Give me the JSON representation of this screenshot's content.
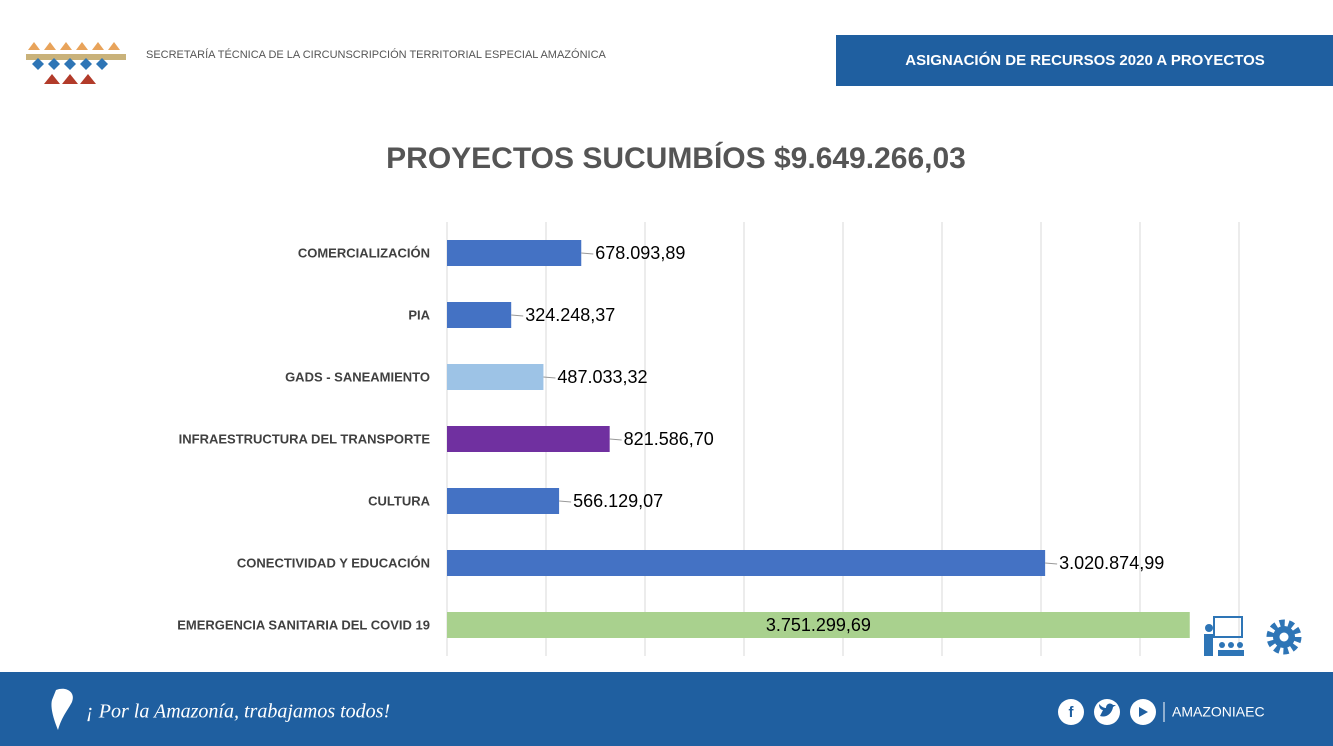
{
  "header": {
    "org": "SECRETARÍA TÉCNICA DE LA CIRCUNSCRIPCIÓN TERRITORIAL ESPECIAL AMAZÓNICA",
    "banner": "ASIGNACIÓN DE RECURSOS 2020 A PROYECTOS"
  },
  "footer": {
    "slogan": "¡ Por la Amazonía, trabajamos todos!",
    "handle": "AMAZONIAEC"
  },
  "chart_data": {
    "type": "hbar",
    "title": "PROYECTOS SUCUMBÍOS $9.649.266,03",
    "categories": [
      "COMERCIALIZACIÓN",
      "PIA",
      "GADS - SANEAMIENTO",
      "INFRAESTRUCTURA DEL TRANSPORTE",
      "CULTURA",
      "CONECTIVIDAD Y EDUCACIÓN",
      "EMERGENCIA SANITARIA DEL COVID 19"
    ],
    "values": [
      678093.89,
      324248.37,
      487033.32,
      821586.7,
      566129.07,
      3020874.99,
      3751299.69
    ],
    "value_labels": [
      "678.093,89",
      "324.248,37",
      "487.033,32",
      "821.586,70",
      "566.129,07",
      "3.020.874,99",
      "3.751.299,69"
    ],
    "colors": [
      "#4472c4",
      "#4472c4",
      "#9dc3e6",
      "#7030a0",
      "#4472c4",
      "#4472c4",
      "#a9d18e"
    ],
    "xlim": [
      0,
      4000000
    ],
    "xticks": [
      0,
      500000,
      1000000,
      1500000,
      2000000,
      2500000,
      3000000,
      3500000,
      4000000
    ],
    "grid": true
  }
}
